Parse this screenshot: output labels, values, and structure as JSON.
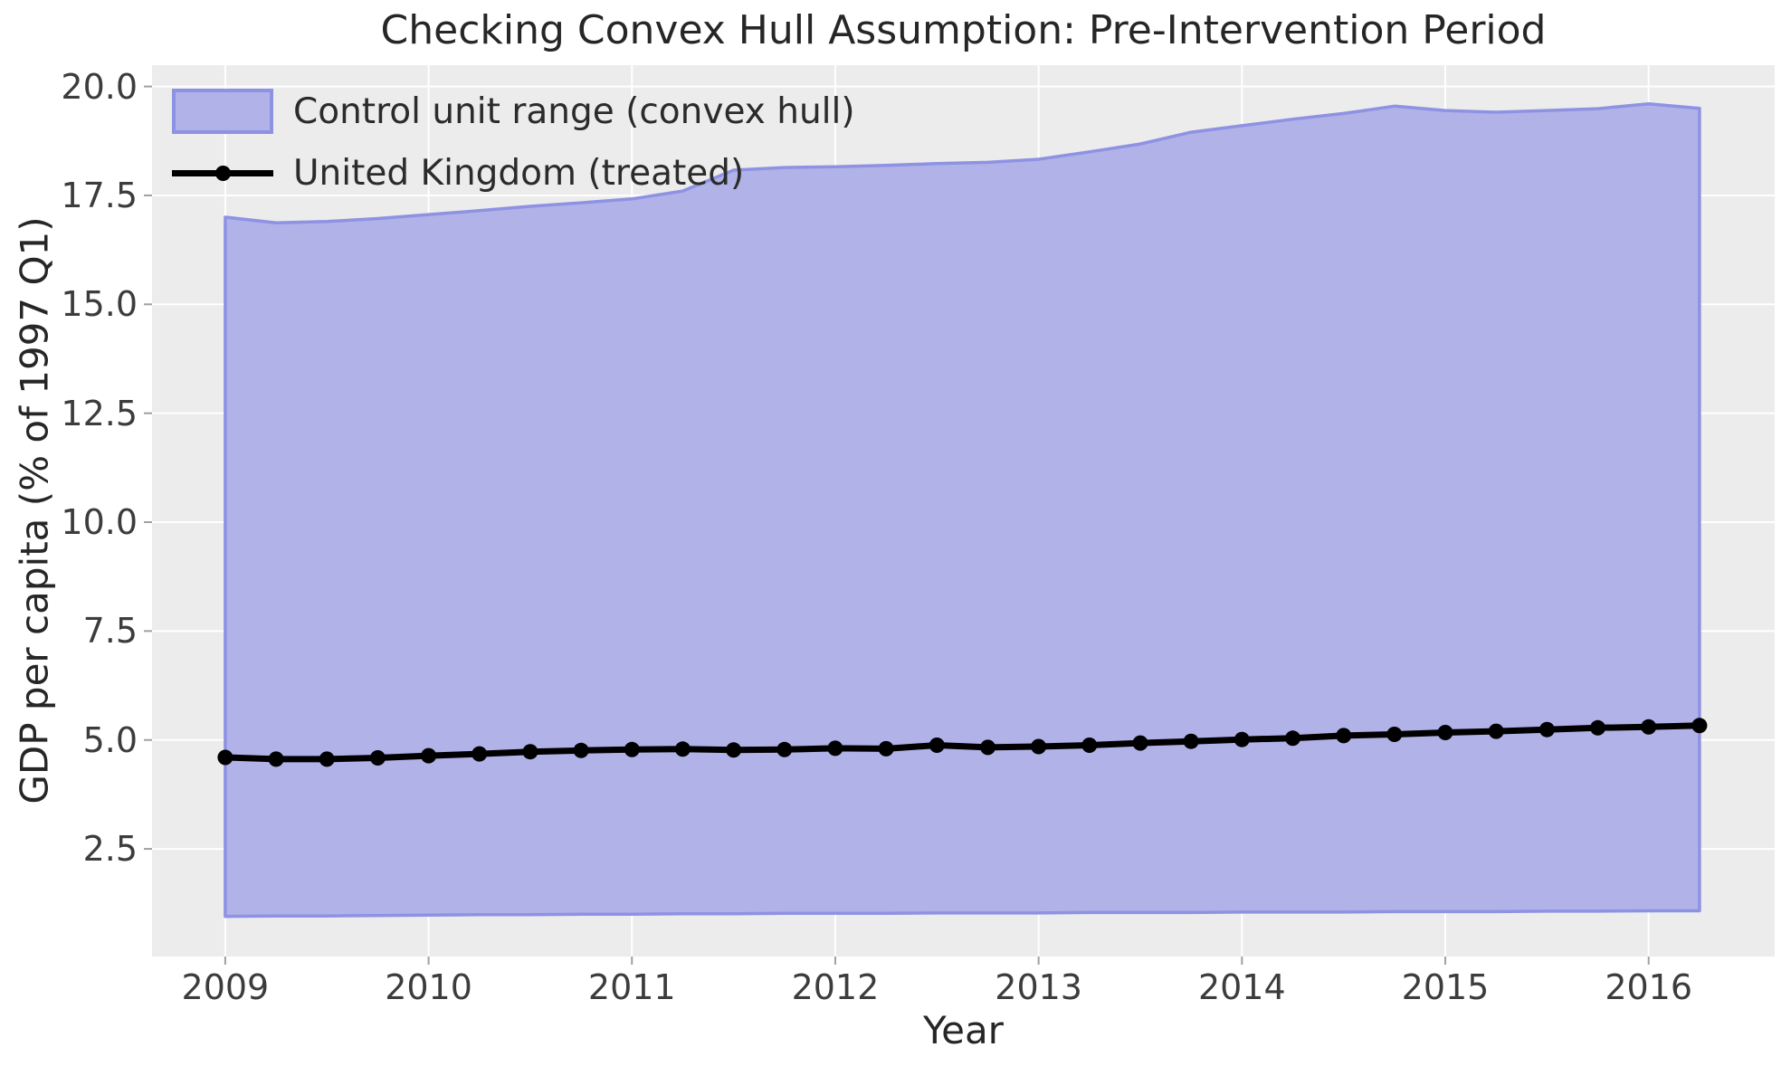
{
  "figure": {
    "title": "Checking Convex Hull Assumption: Pre-Intervention Period",
    "xlabel": "Year",
    "ylabel": "GDP per capita (% of 1997 Q1)"
  },
  "legend": {
    "position": "upper left",
    "items": [
      {
        "label": "Control unit range (convex hull)",
        "marker": "band-swatch"
      },
      {
        "label": "United Kingdom (treated)",
        "marker": "line-with-dot"
      }
    ]
  },
  "colors": {
    "band_fill": "#b1b2e8",
    "band_edge": "#8e92e3",
    "treated_line": "#000000",
    "plot_background": "#ececec",
    "gridline": "#ffffff",
    "tick_mark": "#a0a0a0",
    "text": "#262626"
  },
  "chart_data": {
    "type": "area",
    "title": "Checking Convex Hull Assumption: Pre-Intervention Period",
    "xlabel": "Year",
    "ylabel": "GDP per capita (% of 1997 Q1)",
    "grid": true,
    "legend_position": "upper left",
    "xlim": [
      2008.64,
      2016.62
    ],
    "ylim": [
      0.03,
      20.49
    ],
    "x_ticks": [
      2009,
      2010,
      2011,
      2012,
      2013,
      2014,
      2015,
      2016
    ],
    "x_tick_labels": [
      "2009",
      "2010",
      "2011",
      "2012",
      "2013",
      "2014",
      "2015",
      "2016"
    ],
    "y_ticks": [
      2.5,
      5.0,
      7.5,
      10.0,
      12.5,
      15.0,
      17.5,
      20.0
    ],
    "y_tick_labels": [
      "2.5",
      "5.0",
      "7.5",
      "10.0",
      "12.5",
      "15.0",
      "17.5",
      "20.0"
    ],
    "x": [
      2009.0,
      2009.25,
      2009.5,
      2009.75,
      2010.0,
      2010.25,
      2010.5,
      2010.75,
      2011.0,
      2011.25,
      2011.5,
      2011.75,
      2012.0,
      2012.25,
      2012.5,
      2012.75,
      2013.0,
      2013.25,
      2013.5,
      2013.75,
      2014.0,
      2014.25,
      2014.5,
      2014.75,
      2015.0,
      2015.25,
      2015.5,
      2015.75,
      2016.0,
      2016.25
    ],
    "series": [
      {
        "name": "Control unit range (convex hull)",
        "type": "band",
        "upper": [
          17.0,
          16.87,
          16.9,
          16.97,
          17.06,
          17.15,
          17.25,
          17.33,
          17.42,
          17.6,
          18.08,
          18.14,
          18.16,
          18.19,
          18.23,
          18.26,
          18.33,
          18.5,
          18.68,
          18.95,
          19.1,
          19.25,
          19.38,
          19.55,
          19.45,
          19.41,
          19.45,
          19.49,
          19.6,
          19.5
        ],
        "lower": [
          0.95,
          0.96,
          0.96,
          0.97,
          0.98,
          0.99,
          0.99,
          1.0,
          1.0,
          1.01,
          1.01,
          1.02,
          1.02,
          1.02,
          1.03,
          1.03,
          1.03,
          1.04,
          1.04,
          1.04,
          1.05,
          1.05,
          1.05,
          1.06,
          1.06,
          1.06,
          1.07,
          1.07,
          1.08,
          1.08
        ]
      },
      {
        "name": "United Kingdom (treated)",
        "type": "line+markers",
        "values": [
          4.6,
          4.56,
          4.56,
          4.59,
          4.64,
          4.68,
          4.73,
          4.76,
          4.78,
          4.79,
          4.77,
          4.78,
          4.81,
          4.8,
          4.88,
          4.83,
          4.85,
          4.88,
          4.93,
          4.97,
          5.01,
          5.04,
          5.1,
          5.13,
          5.17,
          5.2,
          5.24,
          5.28,
          5.3,
          5.33
        ]
      }
    ]
  }
}
